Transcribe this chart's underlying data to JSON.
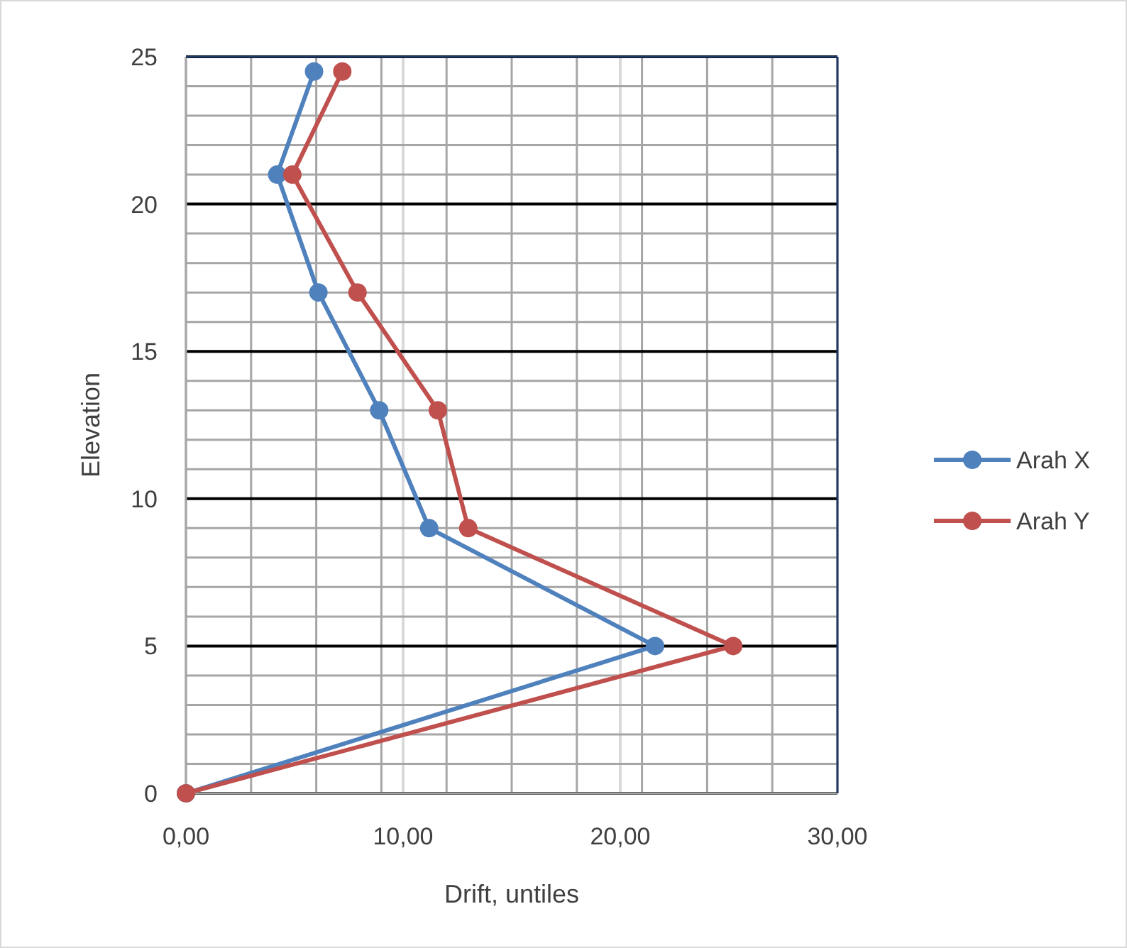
{
  "chart_data": {
    "type": "line",
    "xlabel": "Drift, untiles",
    "ylabel": "Elevation",
    "xlim": [
      0,
      30
    ],
    "ylim": [
      0,
      25
    ],
    "xticks": [
      {
        "value": 0,
        "label": "0,00"
      },
      {
        "value": 3,
        "label": null
      },
      {
        "value": 6,
        "label": null
      },
      {
        "value": 9,
        "label": null
      },
      {
        "value": 10,
        "label": "10,00"
      },
      {
        "value": 12,
        "label": null
      },
      {
        "value": 15,
        "label": null
      },
      {
        "value": 18,
        "label": null
      },
      {
        "value": 20,
        "label": "20,00"
      },
      {
        "value": 21,
        "label": null
      },
      {
        "value": 24,
        "label": null
      },
      {
        "value": 27,
        "label": null
      },
      {
        "value": 30,
        "label": "30,00"
      }
    ],
    "yticks": [
      0,
      {
        "value": 1,
        "label": null
      },
      {
        "value": 2,
        "label": null
      },
      {
        "value": 3,
        "label": null
      },
      {
        "value": 4,
        "label": null
      },
      5,
      {
        "value": 6,
        "label": null
      },
      {
        "value": 7,
        "label": null
      },
      {
        "value": 8,
        "label": null
      },
      {
        "value": 9,
        "label": null
      },
      10,
      {
        "value": 11,
        "label": null
      },
      {
        "value": 12,
        "label": null
      },
      {
        "value": 13,
        "label": null
      },
      {
        "value": 14,
        "label": null
      },
      15,
      {
        "value": 16,
        "label": null
      },
      {
        "value": 17,
        "label": null
      },
      {
        "value": 18,
        "label": null
      },
      {
        "value": 19,
        "label": null
      },
      20,
      {
        "value": 21,
        "label": null
      },
      {
        "value": 22,
        "label": null
      },
      {
        "value": 23,
        "label": null
      },
      {
        "value": 24,
        "label": null
      },
      25
    ],
    "grid": true,
    "legend": "right",
    "marker": "circle",
    "line_style": "solid",
    "series": [
      {
        "name": "Arah X",
        "color": "#4f81bd",
        "x": [
          0,
          21.6,
          11.2,
          8.9,
          6.1,
          4.2,
          5.9
        ],
        "values": [
          0,
          5,
          9,
          13,
          17,
          21,
          24.5
        ]
      },
      {
        "name": "Arah Y",
        "color": "#c0504d",
        "x": [
          0,
          25.2,
          13.0,
          11.6,
          7.9,
          4.9,
          7.2
        ],
        "values": [
          0,
          5,
          9,
          13,
          17,
          21,
          24.5
        ]
      }
    ]
  }
}
